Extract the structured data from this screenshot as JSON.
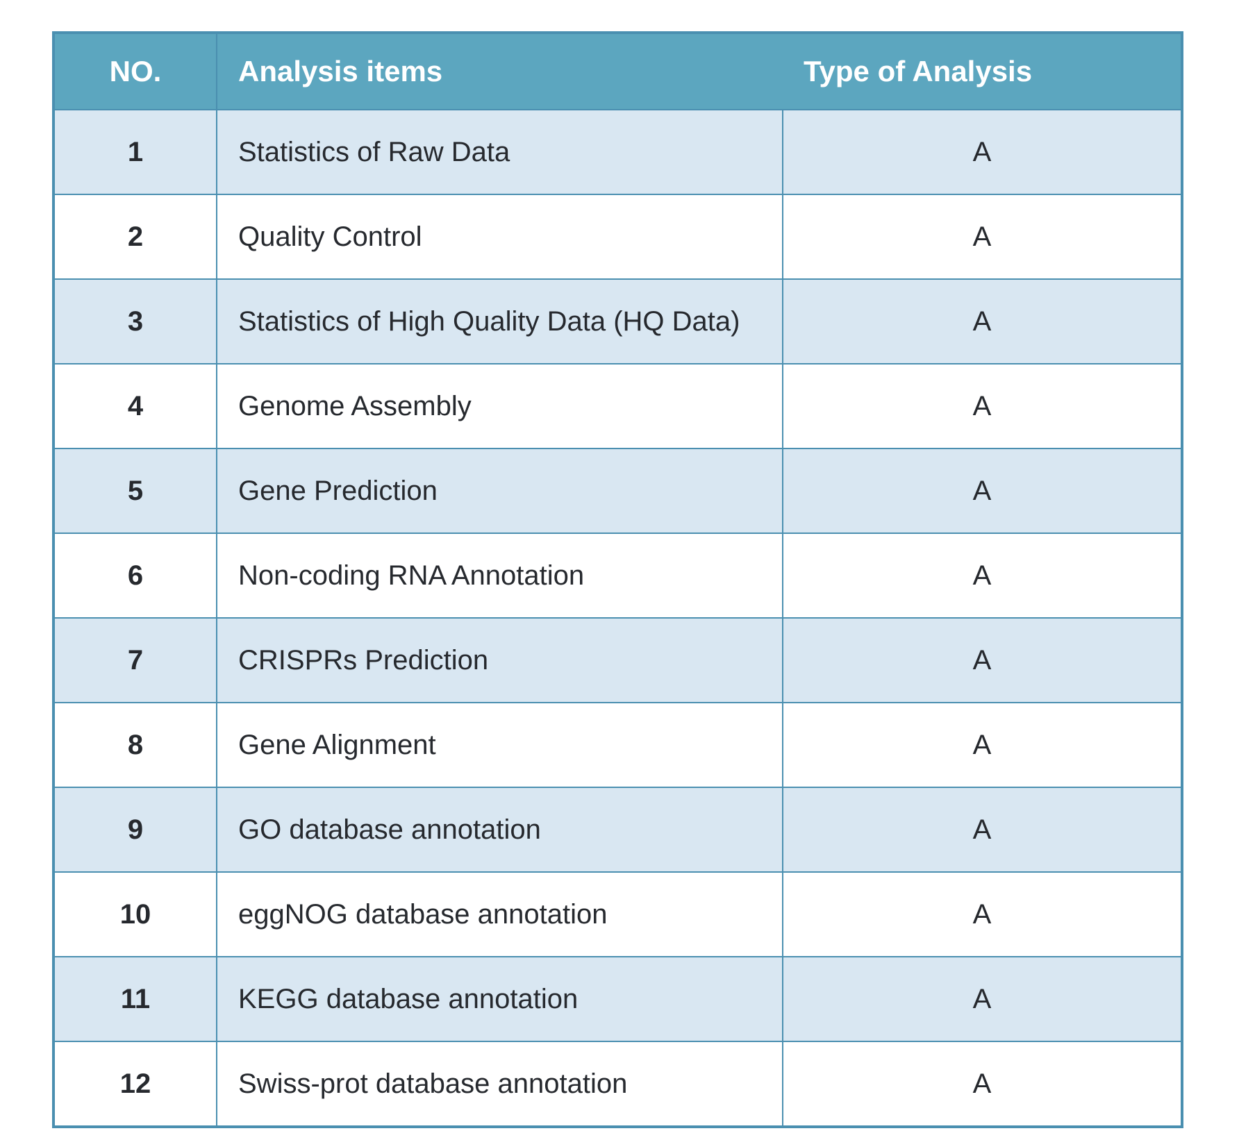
{
  "colors": {
    "header_bg": "#5ca6bf",
    "header_text": "#ffffff",
    "border": "#4a8fb0",
    "row_alt_bg": "#d9e7f2",
    "row_bg": "#ffffff",
    "body_text": "#26292e"
  },
  "table": {
    "columns": [
      {
        "label": "NO."
      },
      {
        "label": "Analysis items"
      },
      {
        "label": "Type of Analysis"
      }
    ],
    "rows": [
      {
        "no": "1",
        "item": "Statistics of Raw Data",
        "type": "A"
      },
      {
        "no": "2",
        "item": "Quality Control",
        "type": "A"
      },
      {
        "no": "3",
        "item": "Statistics of High Quality Data (HQ Data)",
        "type": "A"
      },
      {
        "no": "4",
        "item": "Genome Assembly",
        "type": "A"
      },
      {
        "no": "5",
        "item": "Gene Prediction",
        "type": "A"
      },
      {
        "no": "6",
        "item": "Non-coding RNA Annotation",
        "type": "A"
      },
      {
        "no": "7",
        "item": "CRISPRs Prediction",
        "type": "A"
      },
      {
        "no": "8",
        "item": "Gene Alignment",
        "type": "A"
      },
      {
        "no": "9",
        "item": "GO database annotation",
        "type": "A"
      },
      {
        "no": "10",
        "item": "eggNOG database annotation",
        "type": "A"
      },
      {
        "no": "11",
        "item": "KEGG database annotation",
        "type": "A"
      },
      {
        "no": "12",
        "item": "Swiss-prot database annotation",
        "type": "A"
      }
    ]
  }
}
